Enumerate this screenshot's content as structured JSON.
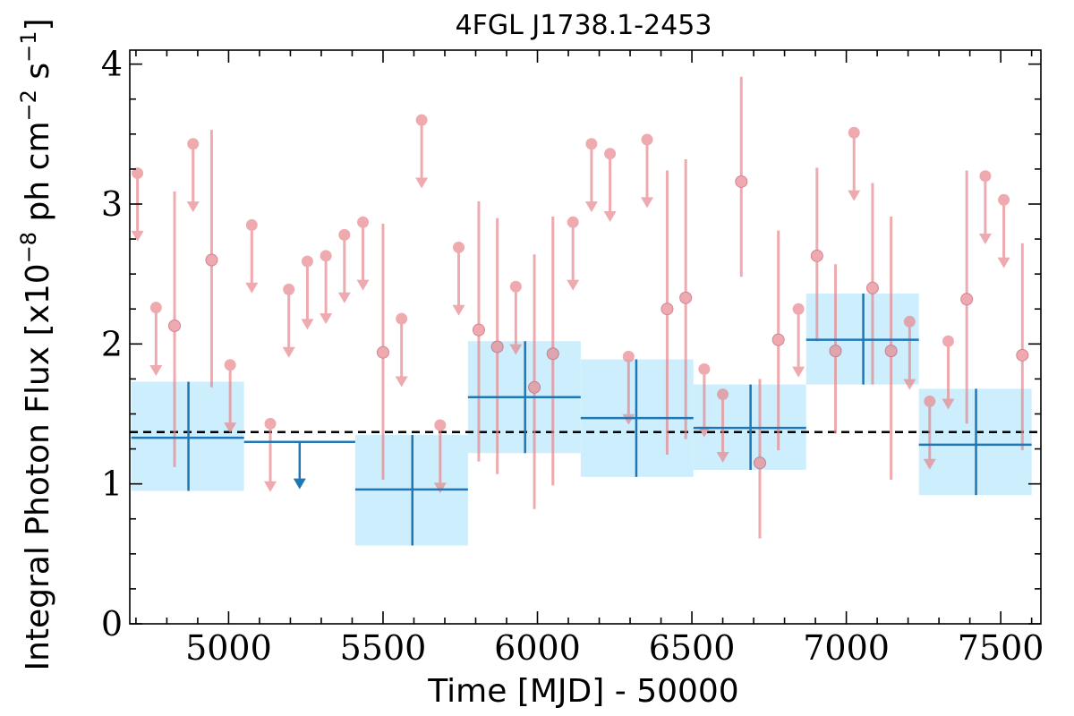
{
  "chart_data": {
    "type": "scatter",
    "title": "4FGL J1738.1-2453",
    "xlabel": "Time [MJD] - 50000",
    "ylabel": "Integral Photon Flux [x10",
    "ylabel_exp1": "−8",
    "ylabel_mid": " ph cm",
    "ylabel_exp2": "−2",
    "ylabel_mid2": " s",
    "ylabel_exp3": "−1",
    "ylabel_end": "]",
    "xlim": [
      4680,
      7630
    ],
    "ylim": [
      0,
      4.1
    ],
    "x_ticks": [
      5000,
      5500,
      6000,
      6500,
      7000,
      7500
    ],
    "x_tick_labels": [
      "5000",
      "5500",
      "6000",
      "6500",
      "7000",
      "7500"
    ],
    "y_ticks": [
      0,
      1,
      2,
      3,
      4
    ],
    "y_tick_labels": [
      "0",
      "1",
      "2",
      "3",
      "4"
    ],
    "mean_flux": 1.37,
    "colors": {
      "monthly": "#e8878c",
      "yearly": "#1f77b4",
      "band": "#cdeefd",
      "mean_line": "#000000"
    },
    "monthly_points": [
      {
        "x": 4705,
        "y": 3.22,
        "ul": true
      },
      {
        "x": 4765,
        "y": 2.26,
        "ul": true
      },
      {
        "x": 4825,
        "y": 2.13,
        "lo": 1.12,
        "hi": 3.09
      },
      {
        "x": 4885,
        "y": 3.43,
        "ul": true
      },
      {
        "x": 4945,
        "y": 2.6,
        "lo": 1.69,
        "hi": 3.53
      },
      {
        "x": 5005,
        "y": 1.85,
        "ul": true
      },
      {
        "x": 5135,
        "y": 1.43,
        "ul": true
      },
      {
        "x": 5075,
        "y": 2.85,
        "ul": true
      },
      {
        "x": 5195,
        "y": 2.39,
        "ul": true
      },
      {
        "x": 5255,
        "y": 2.59,
        "ul": true
      },
      {
        "x": 5315,
        "y": 2.63,
        "ul": true
      },
      {
        "x": 5375,
        "y": 2.78,
        "ul": true
      },
      {
        "x": 5435,
        "y": 2.87,
        "ul": true
      },
      {
        "x": 5500,
        "y": 1.94,
        "lo": 1.03,
        "hi": 2.86
      },
      {
        "x": 5560,
        "y": 2.18,
        "ul": true
      },
      {
        "x": 5625,
        "y": 3.6,
        "ul": true
      },
      {
        "x": 5685,
        "y": 1.42,
        "ul": true
      },
      {
        "x": 5745,
        "y": 2.69,
        "ul": true
      },
      {
        "x": 5810,
        "y": 2.1,
        "lo": 1.16,
        "hi": 3.02
      },
      {
        "x": 5870,
        "y": 1.98,
        "lo": 1.07,
        "hi": 2.9
      },
      {
        "x": 5930,
        "y": 2.41,
        "ul": true
      },
      {
        "x": 5990,
        "y": 1.69,
        "lo": 0.82,
        "hi": 2.64
      },
      {
        "x": 6050,
        "y": 1.93,
        "lo": 0.99,
        "hi": 2.91
      },
      {
        "x": 6115,
        "y": 2.87,
        "ul": true
      },
      {
        "x": 6175,
        "y": 3.43,
        "ul": true
      },
      {
        "x": 6235,
        "y": 3.36,
        "ul": true
      },
      {
        "x": 6295,
        "y": 1.91,
        "ul": true
      },
      {
        "x": 6355,
        "y": 3.46,
        "ul": true
      },
      {
        "x": 6420,
        "y": 2.25,
        "lo": 1.21,
        "hi": 3.24
      },
      {
        "x": 6480,
        "y": 2.33,
        "lo": 1.32,
        "hi": 3.32
      },
      {
        "x": 6540,
        "y": 1.82,
        "ul": true
      },
      {
        "x": 6600,
        "y": 1.64,
        "ul": true
      },
      {
        "x": 6660,
        "y": 3.16,
        "lo": 2.48,
        "hi": 3.91
      },
      {
        "x": 6720,
        "y": 1.15,
        "lo": 0.61,
        "hi": 1.75
      },
      {
        "x": 6780,
        "y": 2.03,
        "lo": 1.24,
        "hi": 2.81
      },
      {
        "x": 6845,
        "y": 2.25,
        "ul": true
      },
      {
        "x": 6905,
        "y": 2.63,
        "lo": 2.02,
        "hi": 3.26
      },
      {
        "x": 6965,
        "y": 1.95,
        "lo": 1.36,
        "hi": 2.57
      },
      {
        "x": 7025,
        "y": 3.51,
        "ul": true
      },
      {
        "x": 7085,
        "y": 2.4,
        "lo": 1.71,
        "hi": 3.15
      },
      {
        "x": 7145,
        "y": 1.95,
        "lo": 1.03,
        "hi": 2.91
      },
      {
        "x": 7205,
        "y": 2.16,
        "ul": true
      },
      {
        "x": 7270,
        "y": 1.59,
        "ul": true
      },
      {
        "x": 7330,
        "y": 2.02,
        "ul": true
      },
      {
        "x": 7390,
        "y": 2.32,
        "lo": 1.43,
        "hi": 3.24
      },
      {
        "x": 7450,
        "y": 3.2,
        "ul": true
      },
      {
        "x": 7510,
        "y": 3.03,
        "ul": true
      },
      {
        "x": 7570,
        "y": 1.92,
        "lo": 1.24,
        "hi": 2.72
      }
    ],
    "yearly_points": [
      {
        "x0": 4685,
        "x1": 5050,
        "x": 4870,
        "y": 1.33,
        "lo": 0.95,
        "hi": 1.73
      },
      {
        "x0": 5050,
        "x1": 5410,
        "x": 5230,
        "y": 1.3,
        "ul": true
      },
      {
        "x0": 5410,
        "x1": 5775,
        "x": 5595,
        "y": 0.96,
        "lo": 0.56,
        "hi": 1.35
      },
      {
        "x0": 5775,
        "x1": 6140,
        "x": 5960,
        "y": 1.62,
        "lo": 1.22,
        "hi": 2.02
      },
      {
        "x0": 6140,
        "x1": 6505,
        "x": 6320,
        "y": 1.47,
        "lo": 1.05,
        "hi": 1.89
      },
      {
        "x0": 6505,
        "x1": 6870,
        "x": 6690,
        "y": 1.4,
        "lo": 1.1,
        "hi": 1.71
      },
      {
        "x0": 6870,
        "x1": 7235,
        "x": 7055,
        "y": 2.03,
        "lo": 1.71,
        "hi": 2.36
      },
      {
        "x0": 7235,
        "x1": 7600,
        "x": 7420,
        "y": 1.28,
        "lo": 0.92,
        "hi": 1.68
      }
    ]
  }
}
